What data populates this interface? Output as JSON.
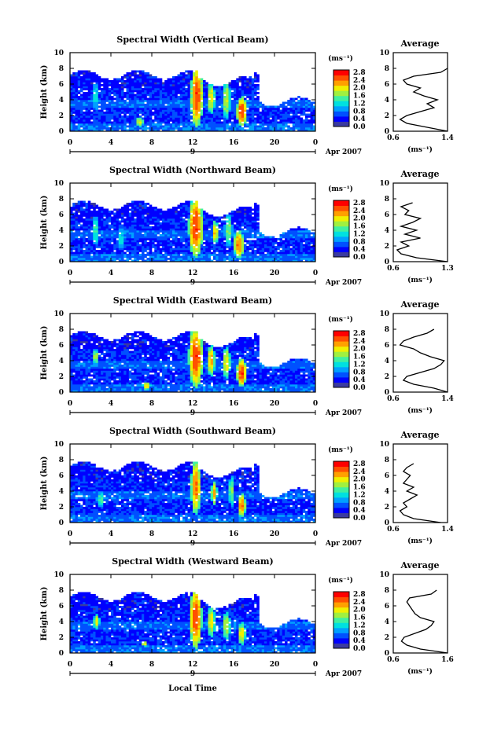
{
  "figure": {
    "xlabel": "Local Time",
    "date_label": "Apr 2007",
    "day_label": "9",
    "average_title": "Average",
    "colorbar_unit": "(ms⁻¹)",
    "avg_xlabel": "(ms⁻¹)",
    "ylabel": "Height (km)"
  },
  "colorbar": {
    "ticks": [
      "2.8",
      "2.4",
      "2.0",
      "1.6",
      "1.2",
      "0.8",
      "0.4",
      "0.0"
    ],
    "colors": [
      "#3a3aa0",
      "#0000ff",
      "#0050ff",
      "#00a0ff",
      "#00e0e0",
      "#40f0a0",
      "#a0f040",
      "#f0f000",
      "#ffa000",
      "#ff5000",
      "#ff0000"
    ]
  },
  "chart_data": [
    {
      "type": "heatmap",
      "title": "Spectral Width (Vertical Beam)",
      "ylabel": "Height (km)",
      "x_ticks": [
        "0",
        "4",
        "8",
        "12",
        "16",
        "20",
        "0"
      ],
      "y_ticks": [
        "0",
        "2",
        "4",
        "6",
        "8",
        "10"
      ],
      "xlim": [
        0,
        24
      ],
      "ylim": [
        0,
        10
      ],
      "blobs": [
        {
          "t": 12.4,
          "h": 4.5,
          "w": 0.6,
          "hh": 4.0,
          "v": 2.6
        },
        {
          "t": 13.8,
          "h": 4.2,
          "w": 0.4,
          "hh": 2.0,
          "v": 2.0
        },
        {
          "t": 15.3,
          "h": 4.0,
          "w": 0.4,
          "hh": 2.5,
          "v": 1.8
        },
        {
          "t": 16.8,
          "h": 2.5,
          "w": 0.5,
          "hh": 2.0,
          "v": 2.6
        },
        {
          "t": 2.5,
          "h": 4.5,
          "w": 0.3,
          "hh": 2.0,
          "v": 1.2
        },
        {
          "t": 6.8,
          "h": 1.2,
          "w": 0.4,
          "hh": 0.6,
          "v": 2.0
        }
      ],
      "average": {
        "xticks": [
          "0.6",
          "1.4"
        ],
        "xlim": [
          0.6,
          1.4
        ],
        "heights": [
          0,
          0.5,
          1,
          1.5,
          2,
          2.5,
          3,
          3.5,
          4,
          4.5,
          5,
          5.5,
          6,
          6.5,
          7,
          7.5,
          8
        ],
        "values": [
          1.4,
          1.1,
          0.8,
          0.7,
          0.8,
          1.0,
          1.2,
          1.1,
          1.25,
          1.05,
          0.9,
          1.0,
          0.8,
          0.75,
          0.9,
          1.3,
          1.4
        ]
      }
    },
    {
      "type": "heatmap",
      "title": "Spectral Width (Northward Beam)",
      "ylabel": "Height (km)",
      "x_ticks": [
        "0",
        "4",
        "8",
        "12",
        "16",
        "20",
        "0"
      ],
      "y_ticks": [
        "0",
        "2",
        "4",
        "6",
        "8",
        "10"
      ],
      "xlim": [
        0,
        24
      ],
      "ylim": [
        0,
        10
      ],
      "blobs": [
        {
          "t": 12.3,
          "h": 4.5,
          "w": 0.7,
          "hh": 4.0,
          "v": 2.6
        },
        {
          "t": 14.2,
          "h": 3.8,
          "w": 0.3,
          "hh": 1.5,
          "v": 2.2
        },
        {
          "t": 15.5,
          "h": 4.0,
          "w": 0.4,
          "hh": 2.0,
          "v": 1.6
        },
        {
          "t": 16.5,
          "h": 2.2,
          "w": 0.5,
          "hh": 1.8,
          "v": 2.4
        },
        {
          "t": 2.5,
          "h": 4.0,
          "w": 0.3,
          "hh": 2.0,
          "v": 1.4
        },
        {
          "t": 5.0,
          "h": 3.0,
          "w": 0.3,
          "hh": 1.5,
          "v": 1.2
        }
      ],
      "average": {
        "xticks": [
          "0.6",
          "1.3"
        ],
        "xlim": [
          0.6,
          1.3
        ],
        "heights": [
          0,
          0.5,
          1,
          1.5,
          2,
          2.5,
          3,
          3.5,
          4,
          4.5,
          5,
          5.5,
          6,
          6.5,
          7,
          7.5
        ],
        "values": [
          1.3,
          0.9,
          0.7,
          0.65,
          0.8,
          0.7,
          0.95,
          0.75,
          0.9,
          0.7,
          0.85,
          0.95,
          0.75,
          0.8,
          0.7,
          0.85
        ]
      }
    },
    {
      "type": "heatmap",
      "title": "Spectral Width (Eastward Beam)",
      "ylabel": "Height (km)",
      "x_ticks": [
        "0",
        "4",
        "8",
        "12",
        "16",
        "20",
        "0"
      ],
      "y_ticks": [
        "0",
        "2",
        "4",
        "6",
        "8",
        "10"
      ],
      "xlim": [
        0,
        24
      ],
      "ylim": [
        0,
        10
      ],
      "blobs": [
        {
          "t": 12.3,
          "h": 4.5,
          "w": 0.7,
          "hh": 4.0,
          "v": 2.6
        },
        {
          "t": 13.8,
          "h": 4.0,
          "w": 0.4,
          "hh": 2.0,
          "v": 2.2
        },
        {
          "t": 15.3,
          "h": 3.8,
          "w": 0.4,
          "hh": 2.0,
          "v": 2.0
        },
        {
          "t": 16.8,
          "h": 2.5,
          "w": 0.5,
          "hh": 1.8,
          "v": 2.6
        },
        {
          "t": 7.5,
          "h": 0.8,
          "w": 0.4,
          "hh": 0.5,
          "v": 2.2
        },
        {
          "t": 2.5,
          "h": 4.5,
          "w": 0.3,
          "hh": 1.0,
          "v": 1.8
        }
      ],
      "average": {
        "xticks": [
          "0.6",
          "1.4"
        ],
        "xlim": [
          0.6,
          1.4
        ],
        "heights": [
          0,
          0.5,
          1,
          1.5,
          2,
          2.5,
          3,
          3.5,
          4,
          4.5,
          5,
          5.5,
          6,
          6.5,
          7,
          7.5,
          8
        ],
        "values": [
          1.4,
          1.2,
          0.9,
          0.75,
          0.8,
          1.0,
          1.2,
          1.3,
          1.35,
          1.15,
          1.0,
          0.9,
          0.7,
          0.75,
          0.9,
          1.1,
          1.2
        ]
      }
    },
    {
      "type": "heatmap",
      "title": "Spectral Width (Southward Beam)",
      "ylabel": "Height (km)",
      "x_ticks": [
        "0",
        "4",
        "8",
        "12",
        "16",
        "20",
        "0"
      ],
      "y_ticks": [
        "0",
        "2",
        "4",
        "6",
        "8",
        "10"
      ],
      "xlim": [
        0,
        24
      ],
      "ylim": [
        0,
        10
      ],
      "blobs": [
        {
          "t": 12.3,
          "h": 4.5,
          "w": 0.5,
          "hh": 3.5,
          "v": 2.4
        },
        {
          "t": 14.1,
          "h": 3.8,
          "w": 0.3,
          "hh": 1.5,
          "v": 2.2
        },
        {
          "t": 15.8,
          "h": 4.0,
          "w": 0.3,
          "hh": 2.0,
          "v": 1.6
        },
        {
          "t": 16.8,
          "h": 2.2,
          "w": 0.4,
          "hh": 1.5,
          "v": 2.4
        },
        {
          "t": 3.0,
          "h": 3.0,
          "w": 0.4,
          "hh": 1.0,
          "v": 1.4
        }
      ],
      "average": {
        "xticks": [
          "0.6",
          "1.4"
        ],
        "xlim": [
          0.6,
          1.4
        ],
        "heights": [
          0,
          0.5,
          1,
          1.5,
          2,
          2.5,
          3,
          3.5,
          4,
          4.5,
          5,
          5.5,
          6,
          6.5,
          7,
          7.5
        ],
        "values": [
          1.3,
          0.9,
          0.75,
          0.7,
          0.8,
          0.75,
          0.85,
          0.95,
          0.8,
          0.9,
          0.75,
          0.8,
          0.85,
          0.75,
          0.8,
          0.9
        ]
      }
    },
    {
      "type": "heatmap",
      "title": "Spectral Width (Westward Beam)",
      "ylabel": "Height (km)",
      "x_ticks": [
        "0",
        "4",
        "8",
        "12",
        "16",
        "20",
        "0"
      ],
      "y_ticks": [
        "0",
        "2",
        "4",
        "6",
        "8",
        "10"
      ],
      "xlim": [
        0,
        24
      ],
      "ylim": [
        0,
        10
      ],
      "blobs": [
        {
          "t": 12.3,
          "h": 4.5,
          "w": 0.6,
          "hh": 4.0,
          "v": 2.6
        },
        {
          "t": 13.8,
          "h": 4.0,
          "w": 0.4,
          "hh": 2.0,
          "v": 2.0
        },
        {
          "t": 15.3,
          "h": 3.5,
          "w": 0.4,
          "hh": 1.8,
          "v": 1.8
        },
        {
          "t": 16.8,
          "h": 2.5,
          "w": 0.4,
          "hh": 1.5,
          "v": 2.0
        },
        {
          "t": 2.6,
          "h": 4.0,
          "w": 0.3,
          "hh": 1.0,
          "v": 2.0
        },
        {
          "t": 7.3,
          "h": 1.2,
          "w": 0.3,
          "hh": 0.4,
          "v": 2.0
        }
      ],
      "average": {
        "xticks": [
          "0.6",
          "1.6"
        ],
        "xlim": [
          0.6,
          1.6
        ],
        "heights": [
          0,
          0.5,
          1,
          1.5,
          2,
          2.5,
          3,
          3.5,
          4,
          4.5,
          5,
          5.5,
          6,
          6.5,
          7,
          7.5,
          8
        ],
        "values": [
          1.6,
          1.1,
          0.85,
          0.75,
          0.8,
          1.0,
          1.2,
          1.3,
          1.35,
          1.1,
          1.0,
          0.95,
          0.9,
          0.85,
          0.9,
          1.3,
          1.4
        ]
      }
    }
  ]
}
